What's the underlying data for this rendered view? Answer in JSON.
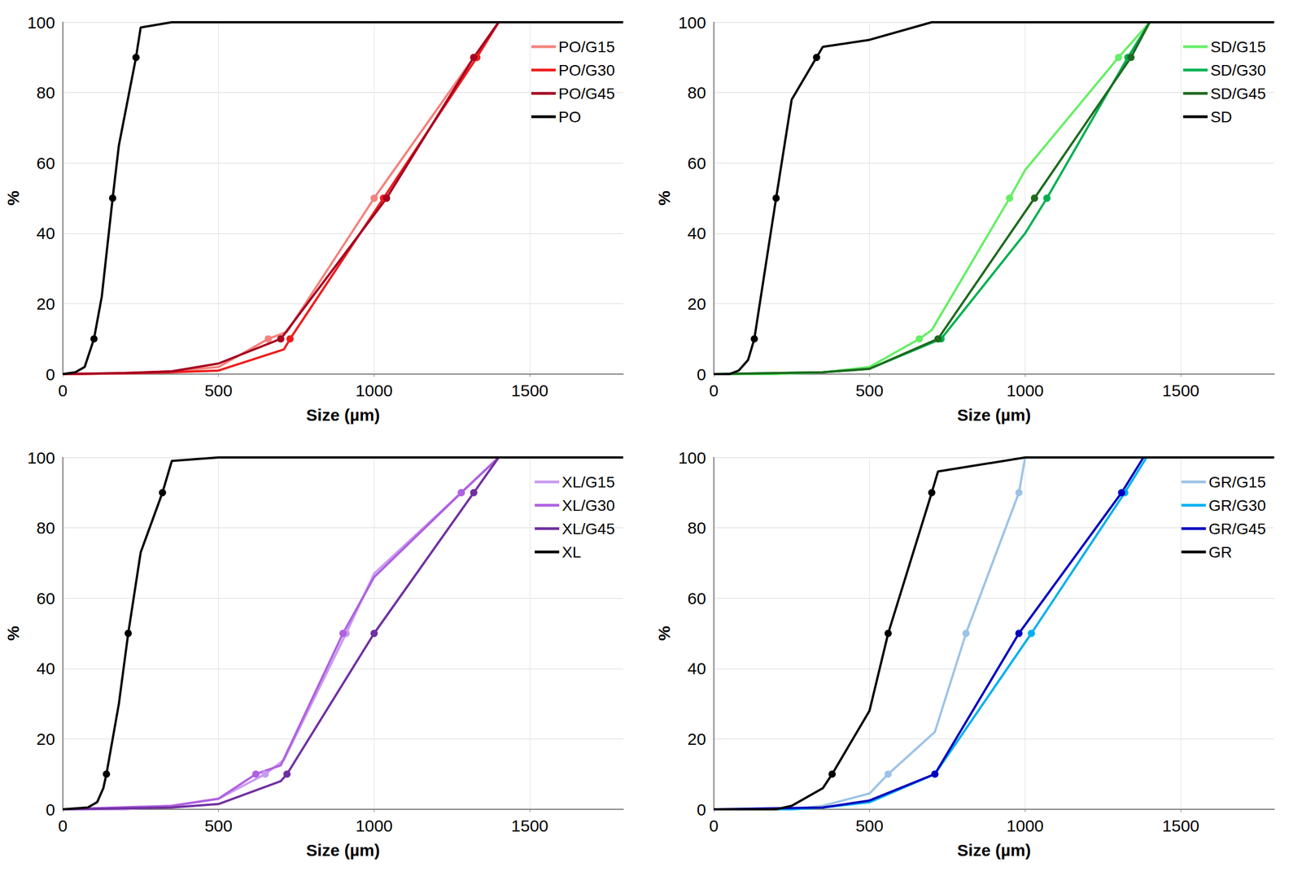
{
  "chart_data": [
    {
      "type": "line",
      "x_label": "Size (µm)",
      "y_label": "%",
      "xlim": [
        0,
        1800
      ],
      "ylim": [
        0,
        100
      ],
      "xticks": [
        0,
        500,
        1000,
        1500
      ],
      "yticks": [
        0,
        20,
        40,
        60,
        80,
        100
      ],
      "grid": true,
      "legend": "upper right",
      "percentiles": [
        10,
        50,
        90
      ],
      "series": [
        {
          "name": "PO/G15",
          "color": "#f4837d",
          "marker": "circle",
          "x": [
            0,
            50,
            200,
            350,
            500,
            660,
            720,
            1000,
            1320,
            1400,
            1800
          ],
          "values": [
            0,
            0,
            0.3,
            0.8,
            2,
            10,
            12,
            50,
            90,
            100,
            100
          ]
        },
        {
          "name": "PO/G30",
          "color": "#ee1c1c",
          "marker": "circle",
          "x": [
            0,
            200,
            350,
            500,
            710,
            730,
            1030,
            1330,
            1400,
            1800
          ],
          "values": [
            0,
            0.2,
            0.5,
            1,
            7,
            10,
            50,
            90,
            100,
            100
          ]
        },
        {
          "name": "PO/G45",
          "color": "#a50021",
          "marker": "circle",
          "x": [
            0,
            200,
            350,
            500,
            700,
            1040,
            1320,
            1400,
            1800
          ],
          "values": [
            0,
            0.3,
            0.8,
            3,
            10,
            50,
            90,
            100,
            100
          ]
        },
        {
          "name": "PO",
          "color": "#000000",
          "marker": "circle",
          "x": [
            0,
            40,
            70,
            100,
            125,
            160,
            180,
            235,
            250,
            350,
            1800
          ],
          "values": [
            0,
            0.5,
            2,
            10,
            22,
            50,
            65,
            90,
            98.5,
            100,
            100
          ]
        }
      ]
    },
    {
      "type": "line",
      "x_label": "Size (µm)",
      "y_label": "%",
      "xlim": [
        0,
        1800
      ],
      "ylim": [
        0,
        100
      ],
      "xticks": [
        0,
        500,
        1000,
        1500
      ],
      "yticks": [
        0,
        20,
        40,
        60,
        80,
        100
      ],
      "grid": true,
      "legend": "upper right",
      "percentiles": [
        10,
        50,
        90
      ],
      "series": [
        {
          "name": "SD/G15",
          "color": "#66ee66",
          "marker": "circle",
          "x": [
            0,
            200,
            350,
            500,
            660,
            700,
            950,
            1000,
            1300,
            1400,
            1800
          ],
          "values": [
            0,
            0,
            0.5,
            2,
            10,
            12.5,
            50,
            58,
            90,
            100,
            100
          ]
        },
        {
          "name": "SD/G30",
          "color": "#00b050",
          "marker": "circle",
          "x": [
            0,
            350,
            500,
            730,
            1000,
            1070,
            1330,
            1400,
            1800
          ],
          "values": [
            0,
            0.5,
            1.5,
            10,
            40,
            50,
            90,
            100,
            100
          ]
        },
        {
          "name": "SD/G45",
          "color": "#1e6b1e",
          "marker": "circle",
          "x": [
            0,
            350,
            500,
            720,
            1030,
            1340,
            1400,
            1800
          ],
          "values": [
            0,
            0.5,
            1.5,
            10,
            50,
            90,
            100,
            100
          ]
        },
        {
          "name": "SD",
          "color": "#000000",
          "marker": "circle",
          "x": [
            0,
            50,
            80,
            110,
            130,
            200,
            250,
            330,
            350,
            500,
            700,
            1800
          ],
          "values": [
            0,
            0,
            1,
            4,
            10,
            50,
            78,
            90,
            93,
            95,
            100,
            100
          ]
        }
      ]
    },
    {
      "type": "line",
      "x_label": "Size (µm)",
      "y_label": "%",
      "xlim": [
        0,
        1800
      ],
      "ylim": [
        0,
        100
      ],
      "xticks": [
        0,
        500,
        1000,
        1500
      ],
      "yticks": [
        0,
        20,
        40,
        60,
        80,
        100
      ],
      "grid": true,
      "legend": "upper right",
      "percentiles": [
        10,
        50,
        90
      ],
      "series": [
        {
          "name": "XL/G15",
          "color": "#c89bf0",
          "marker": "circle",
          "x": [
            0,
            200,
            350,
            500,
            650,
            710,
            910,
            1000,
            1280,
            1400,
            1800
          ],
          "values": [
            0,
            0,
            1,
            3,
            10,
            14,
            50,
            67,
            90,
            100,
            100
          ]
        },
        {
          "name": "XL/G30",
          "color": "#b060e0",
          "marker": "circle",
          "x": [
            0,
            350,
            500,
            620,
            700,
            900,
            1000,
            1280,
            1400,
            1800
          ],
          "values": [
            0,
            1,
            3,
            10,
            12.5,
            50,
            66,
            90,
            100,
            100
          ]
        },
        {
          "name": "XL/G45",
          "color": "#7030a0",
          "marker": "circle",
          "x": [
            0,
            350,
            500,
            700,
            720,
            1000,
            1320,
            1400,
            1800
          ],
          "values": [
            0,
            0.5,
            1.5,
            8,
            10,
            50,
            90,
            100,
            100
          ]
        },
        {
          "name": "XL",
          "color": "#000000",
          "marker": "circle",
          "x": [
            0,
            80,
            110,
            130,
            140,
            180,
            210,
            250,
            320,
            350,
            500,
            1800
          ],
          "values": [
            0,
            0.5,
            2,
            6,
            10,
            30,
            50,
            73,
            90,
            99,
            100,
            100
          ]
        }
      ]
    },
    {
      "type": "line",
      "x_label": "Size (µm)",
      "y_label": "%",
      "xlim": [
        0,
        1800
      ],
      "ylim": [
        0,
        100
      ],
      "xticks": [
        0,
        500,
        1000,
        1500
      ],
      "yticks": [
        0,
        20,
        40,
        60,
        80,
        100
      ],
      "grid": true,
      "legend": "upper right",
      "percentiles": [
        10,
        50,
        90
      ],
      "series": [
        {
          "name": "GR/G15",
          "color": "#9dc3e6",
          "marker": "circle",
          "x": [
            0,
            250,
            350,
            500,
            560,
            710,
            810,
            980,
            1000,
            1800
          ],
          "values": [
            0,
            0,
            1,
            4.5,
            10,
            22,
            50,
            90,
            100,
            100
          ]
        },
        {
          "name": "GR/G30",
          "color": "#00b0f0",
          "marker": "circle",
          "x": [
            0,
            250,
            350,
            500,
            710,
            1020,
            1320,
            1390,
            1800
          ],
          "values": [
            0,
            0,
            0.5,
            2,
            10,
            50,
            90,
            100,
            100
          ]
        },
        {
          "name": "GR/G45",
          "color": "#0000c0",
          "marker": "circle",
          "x": [
            0,
            350,
            500,
            710,
            980,
            1310,
            1380,
            1800
          ],
          "values": [
            0,
            0.5,
            2.5,
            10,
            50,
            90,
            100,
            100
          ]
        },
        {
          "name": "GR",
          "color": "#000000",
          "marker": "circle",
          "x": [
            0,
            200,
            250,
            350,
            380,
            500,
            560,
            700,
            720,
            1000,
            1800
          ],
          "values": [
            0,
            0,
            1,
            6,
            10,
            28,
            50,
            90,
            96,
            100,
            100
          ]
        }
      ]
    }
  ]
}
